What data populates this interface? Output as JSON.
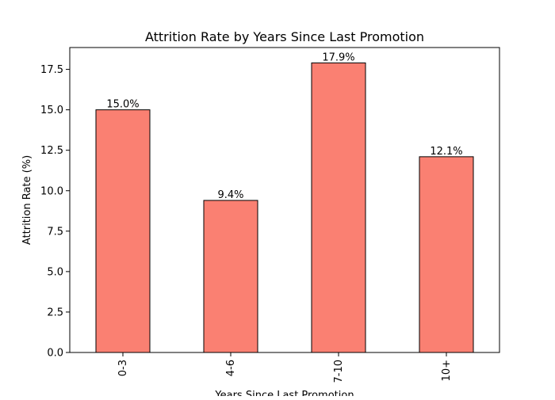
{
  "chart_data": {
    "type": "bar",
    "title": "Attrition Rate by Years Since Last Promotion",
    "xlabel": "Years Since Last Promotion",
    "ylabel": "Attrition Rate (%)",
    "categories": [
      "0-3",
      "4-6",
      "7-10",
      "10+"
    ],
    "values": [
      15.0,
      9.4,
      17.9,
      12.1
    ],
    "data_labels": [
      "15.0%",
      "9.4%",
      "17.9%",
      "12.1%"
    ],
    "ylim": [
      0,
      18.85
    ],
    "yticks": [
      0.0,
      2.5,
      5.0,
      7.5,
      10.0,
      12.5,
      15.0,
      17.5
    ],
    "ytick_labels": [
      "0.0",
      "2.5",
      "5.0",
      "7.5",
      "10.0",
      "12.5",
      "15.0",
      "17.5"
    ],
    "grid": false,
    "bar_color": "#fa8072",
    "bar_edge_color": "#000000"
  }
}
